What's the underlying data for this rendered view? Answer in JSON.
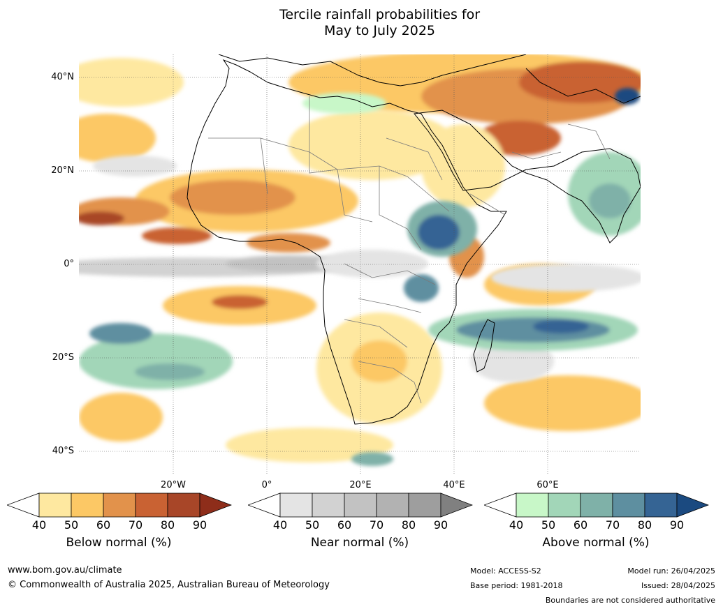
{
  "title_line1": "Tercile rainfall probabilities for",
  "title_line2": "May to July 2025",
  "map": {
    "lat_labels": [
      "40°N",
      "20°N",
      "0°",
      "20°S",
      "40°S"
    ],
    "lon_labels": [
      "20°W",
      "0°",
      "20°E",
      "40°E",
      "60°E"
    ]
  },
  "colorbars": [
    {
      "title": "Below normal (%)",
      "ticks": [
        "40",
        "50",
        "60",
        "70",
        "80",
        "90"
      ],
      "colors": [
        "#ffffff",
        "#fee8a0",
        "#fcc865",
        "#e2924b",
        "#c96233",
        "#a84628"
      ],
      "over": "#8e2d1a"
    },
    {
      "title": "Near normal (%)",
      "ticks": [
        "40",
        "50",
        "60",
        "70",
        "80",
        "90"
      ],
      "colors": [
        "#ffffff",
        "#e4e4e4",
        "#d2d2d2",
        "#c2c2c2",
        "#b2b2b2",
        "#9e9e9e"
      ],
      "over": "#808080"
    },
    {
      "title": "Above normal (%)",
      "ticks": [
        "40",
        "50",
        "60",
        "70",
        "80",
        "90"
      ],
      "colors": [
        "#ffffff",
        "#c8f7c8",
        "#a2d6b8",
        "#7fb1a8",
        "#5e8fa0",
        "#356494"
      ],
      "over": "#1b4a80"
    }
  ],
  "footer": {
    "url": "www.bom.gov.au/climate",
    "copyright": "© Commonwealth of Australia 2025, Australian Bureau of Meteorology",
    "model": "Model: ACCESS-S2",
    "base_period": "Base period: 1981-2018",
    "model_run": "Model run: 26/04/2025",
    "issued": "Issued: 28/04/2025",
    "disclaimer": "Boundaries are not considered authoritative"
  }
}
